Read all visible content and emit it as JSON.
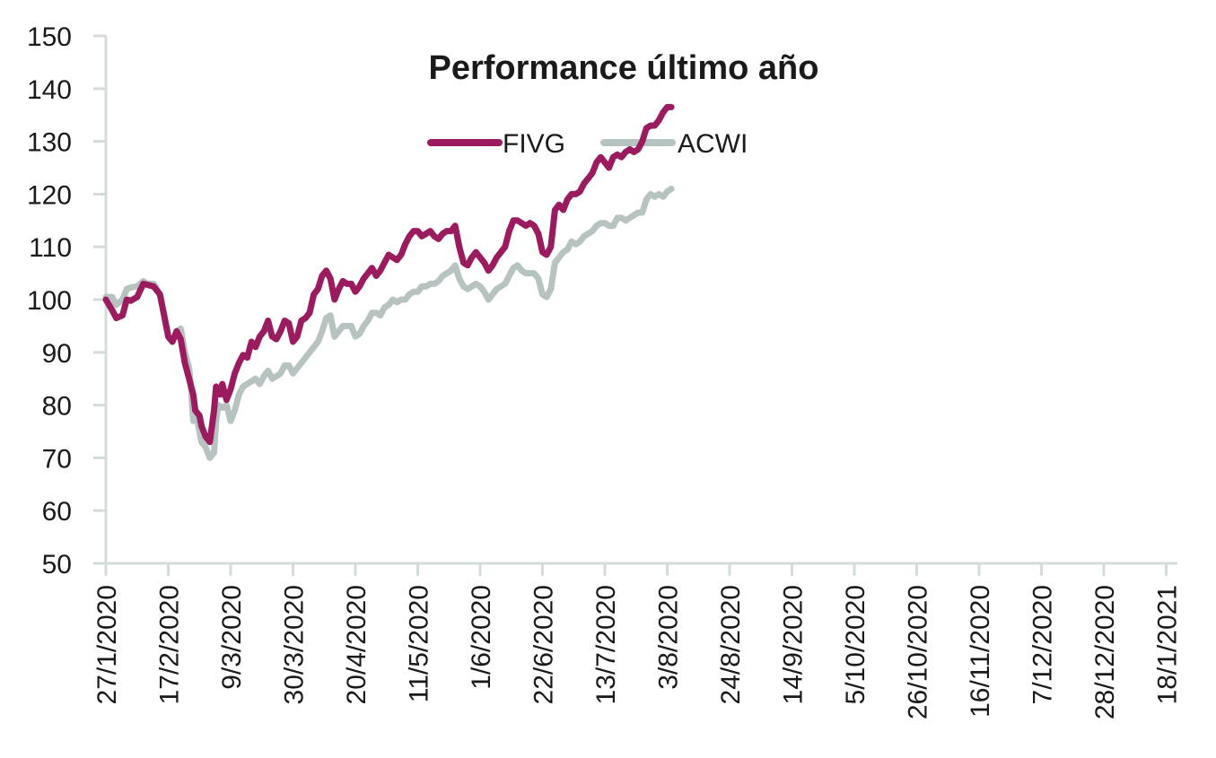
{
  "chart_data": {
    "type": "line",
    "title": "Performance último año",
    "xlabel": "",
    "ylabel": "",
    "ylim": [
      50,
      150
    ],
    "yticks": [
      50,
      60,
      70,
      80,
      90,
      100,
      110,
      120,
      130,
      140,
      150
    ],
    "xtick_labels": [
      "27/1/2020",
      "17/2/2020",
      "9/3/2020",
      "30/3/2020",
      "20/4/2020",
      "11/5/2020",
      "1/6/2020",
      "22/6/2020",
      "13/7/2020",
      "3/8/2020",
      "24/8/2020",
      "14/9/2020",
      "5/10/2020",
      "26/10/2020",
      "16/11/2020",
      "7/12/2020",
      "28/12/2020",
      "18/1/2021"
    ],
    "grid": false,
    "legend_position": "top-center",
    "series": [
      {
        "name": "FIVG",
        "color": "#9b1b5f",
        "points": [
          [
            0,
            100
          ],
          [
            0.3,
            98
          ],
          [
            0.5,
            96.5
          ],
          [
            0.8,
            97
          ],
          [
            1,
            100
          ],
          [
            1.2,
            99.8
          ],
          [
            1.5,
            100.5
          ],
          [
            1.8,
            103
          ],
          [
            2,
            102.8
          ],
          [
            2.3,
            102.5
          ],
          [
            2.6,
            101
          ],
          [
            2.8,
            97
          ],
          [
            3,
            93
          ],
          [
            3.2,
            92
          ],
          [
            3.4,
            94
          ],
          [
            3.6,
            92.5
          ],
          [
            3.8,
            88
          ],
          [
            4,
            85
          ],
          [
            4.2,
            82
          ],
          [
            4.3,
            79
          ],
          [
            4.5,
            78
          ],
          [
            4.6,
            76
          ],
          [
            4.8,
            74
          ],
          [
            5,
            73
          ],
          [
            5.2,
            79
          ],
          [
            5.3,
            83.5
          ],
          [
            5.5,
            82
          ],
          [
            5.6,
            84
          ],
          [
            5.8,
            81
          ],
          [
            6,
            83
          ],
          [
            6.2,
            86
          ],
          [
            6.4,
            88
          ],
          [
            6.6,
            89.5
          ],
          [
            6.8,
            89
          ],
          [
            7,
            92
          ],
          [
            7.2,
            91
          ],
          [
            7.4,
            93
          ],
          [
            7.6,
            94
          ],
          [
            7.8,
            96
          ],
          [
            8,
            93
          ],
          [
            8.2,
            92.5
          ],
          [
            8.4,
            94
          ],
          [
            8.6,
            96
          ],
          [
            8.8,
            95.5
          ],
          [
            9,
            92
          ],
          [
            9.2,
            93
          ],
          [
            9.4,
            96
          ],
          [
            9.6,
            96.5
          ],
          [
            9.8,
            97.5
          ],
          [
            10,
            101
          ],
          [
            10.2,
            102
          ],
          [
            10.4,
            104.5
          ],
          [
            10.6,
            105.5
          ],
          [
            10.8,
            104
          ],
          [
            11,
            100
          ],
          [
            11.2,
            102
          ],
          [
            11.4,
            103.5
          ],
          [
            11.6,
            103
          ],
          [
            11.8,
            103
          ],
          [
            12,
            101.5
          ],
          [
            12.2,
            102.5
          ],
          [
            12.4,
            104
          ],
          [
            12.6,
            105
          ],
          [
            12.8,
            106
          ],
          [
            13,
            104.5
          ],
          [
            13.2,
            105.5
          ],
          [
            13.4,
            107
          ],
          [
            13.6,
            108.5
          ],
          [
            13.8,
            108
          ],
          [
            14,
            107.5
          ],
          [
            14.2,
            108.5
          ],
          [
            14.4,
            110.5
          ],
          [
            14.6,
            112
          ],
          [
            14.8,
            113
          ],
          [
            15,
            113
          ],
          [
            15.2,
            112
          ],
          [
            15.4,
            112.5
          ],
          [
            15.6,
            113
          ],
          [
            15.8,
            112
          ],
          [
            16,
            111.5
          ],
          [
            16.2,
            112.5
          ],
          [
            16.4,
            113
          ],
          [
            16.6,
            113
          ],
          [
            16.8,
            114
          ],
          [
            17,
            110
          ],
          [
            17.2,
            107
          ],
          [
            17.4,
            106.5
          ],
          [
            17.6,
            108
          ],
          [
            17.8,
            109
          ],
          [
            18,
            108
          ],
          [
            18.2,
            107
          ],
          [
            18.4,
            105.5
          ],
          [
            18.6,
            106.5
          ],
          [
            18.8,
            108
          ],
          [
            19,
            109
          ],
          [
            19.2,
            110
          ],
          [
            19.4,
            113
          ],
          [
            19.6,
            115
          ],
          [
            19.8,
            115
          ],
          [
            20,
            114.5
          ],
          [
            20.2,
            114
          ],
          [
            20.4,
            114.5
          ],
          [
            20.6,
            114
          ],
          [
            20.8,
            112.5
          ],
          [
            21,
            109
          ],
          [
            21.2,
            108.5
          ],
          [
            21.4,
            110
          ],
          [
            21.6,
            117
          ],
          [
            21.8,
            118
          ],
          [
            22,
            117
          ],
          [
            22.2,
            119
          ],
          [
            22.4,
            120
          ],
          [
            22.6,
            120
          ],
          [
            22.8,
            120.5
          ],
          [
            23,
            122
          ],
          [
            23.2,
            123
          ],
          [
            23.4,
            124
          ],
          [
            23.6,
            126
          ],
          [
            23.8,
            127
          ],
          [
            24,
            126
          ],
          [
            24.2,
            125
          ],
          [
            24.4,
            127
          ],
          [
            24.6,
            127.5
          ],
          [
            24.8,
            127
          ],
          [
            25,
            128
          ],
          [
            25.2,
            128.5
          ],
          [
            25.4,
            128
          ],
          [
            25.6,
            128.5
          ],
          [
            25.8,
            130
          ],
          [
            26,
            132.5
          ],
          [
            26.2,
            133
          ],
          [
            26.4,
            133
          ],
          [
            26.6,
            134
          ],
          [
            26.8,
            135.5
          ],
          [
            27,
            136.5
          ],
          [
            27.2,
            136.5
          ]
        ]
      },
      {
        "name": "ACWI",
        "color": "#b7c3c1",
        "points": [
          [
            0,
            100.5
          ],
          [
            0.3,
            100.5
          ],
          [
            0.5,
            99
          ],
          [
            0.8,
            100
          ],
          [
            1,
            102
          ],
          [
            1.2,
            102.3
          ],
          [
            1.5,
            102.5
          ],
          [
            1.8,
            103.5
          ],
          [
            2,
            103
          ],
          [
            2.3,
            103
          ],
          [
            2.6,
            101
          ],
          [
            2.8,
            97
          ],
          [
            3,
            93
          ],
          [
            3.2,
            92
          ],
          [
            3.4,
            94
          ],
          [
            3.6,
            94.5
          ],
          [
            3.8,
            90
          ],
          [
            4,
            87
          ],
          [
            4.1,
            83
          ],
          [
            4.2,
            77
          ],
          [
            4.3,
            79
          ],
          [
            4.5,
            75
          ],
          [
            4.6,
            73
          ],
          [
            4.8,
            72
          ],
          [
            5,
            70
          ],
          [
            5.2,
            71
          ],
          [
            5.3,
            77
          ],
          [
            5.4,
            80
          ],
          [
            5.6,
            79.5
          ],
          [
            5.8,
            80
          ],
          [
            6,
            77
          ],
          [
            6.2,
            79
          ],
          [
            6.4,
            82
          ],
          [
            6.6,
            83.5
          ],
          [
            6.8,
            84
          ],
          [
            7,
            84.5
          ],
          [
            7.2,
            85
          ],
          [
            7.4,
            84
          ],
          [
            7.6,
            85.5
          ],
          [
            7.8,
            86.5
          ],
          [
            8,
            85
          ],
          [
            8.2,
            85.5
          ],
          [
            8.4,
            86
          ],
          [
            8.6,
            87.5
          ],
          [
            8.8,
            87.5
          ],
          [
            9,
            86
          ],
          [
            9.2,
            87
          ],
          [
            9.4,
            88
          ],
          [
            9.6,
            89
          ],
          [
            9.8,
            90
          ],
          [
            10,
            91
          ],
          [
            10.2,
            92
          ],
          [
            10.4,
            94
          ],
          [
            10.6,
            96.5
          ],
          [
            10.8,
            97
          ],
          [
            11,
            93
          ],
          [
            11.2,
            94
          ],
          [
            11.4,
            95
          ],
          [
            11.6,
            95
          ],
          [
            11.8,
            95
          ],
          [
            12,
            93
          ],
          [
            12.2,
            93.5
          ],
          [
            12.4,
            95
          ],
          [
            12.6,
            96
          ],
          [
            12.8,
            97.5
          ],
          [
            13,
            97.5
          ],
          [
            13.2,
            97
          ],
          [
            13.4,
            98.5
          ],
          [
            13.6,
            99
          ],
          [
            13.8,
            100
          ],
          [
            14,
            99.5
          ],
          [
            14.2,
            100
          ],
          [
            14.4,
            100
          ],
          [
            14.6,
            101
          ],
          [
            14.8,
            101.5
          ],
          [
            15,
            101.5
          ],
          [
            15.2,
            102.5
          ],
          [
            15.4,
            102.5
          ],
          [
            15.6,
            103
          ],
          [
            15.8,
            103
          ],
          [
            16,
            103.5
          ],
          [
            16.2,
            104.5
          ],
          [
            16.4,
            105
          ],
          [
            16.6,
            105.5
          ],
          [
            16.8,
            106.5
          ],
          [
            17,
            104
          ],
          [
            17.2,
            102.5
          ],
          [
            17.4,
            102
          ],
          [
            17.6,
            102.5
          ],
          [
            17.8,
            103
          ],
          [
            18,
            102.5
          ],
          [
            18.2,
            101.5
          ],
          [
            18.4,
            100
          ],
          [
            18.6,
            101
          ],
          [
            18.8,
            102
          ],
          [
            19,
            102.5
          ],
          [
            19.2,
            103
          ],
          [
            19.4,
            104.5
          ],
          [
            19.6,
            106
          ],
          [
            19.8,
            106.5
          ],
          [
            20,
            105.5
          ],
          [
            20.2,
            105
          ],
          [
            20.4,
            105
          ],
          [
            20.6,
            105
          ],
          [
            20.8,
            104
          ],
          [
            21,
            101
          ],
          [
            21.2,
            100.5
          ],
          [
            21.4,
            102
          ],
          [
            21.6,
            107
          ],
          [
            21.8,
            108
          ],
          [
            22,
            109
          ],
          [
            22.2,
            109.5
          ],
          [
            22.4,
            111
          ],
          [
            22.6,
            110.5
          ],
          [
            22.8,
            111
          ],
          [
            23,
            112
          ],
          [
            23.2,
            112.5
          ],
          [
            23.4,
            113
          ],
          [
            23.6,
            114
          ],
          [
            23.8,
            114.5
          ],
          [
            24,
            114.5
          ],
          [
            24.2,
            114
          ],
          [
            24.4,
            114
          ],
          [
            24.6,
            115.5
          ],
          [
            24.8,
            115.5
          ],
          [
            25,
            115
          ],
          [
            25.2,
            115.5
          ],
          [
            25.4,
            116
          ],
          [
            25.6,
            116.5
          ],
          [
            25.8,
            116.5
          ],
          [
            26,
            119
          ],
          [
            26.2,
            120
          ],
          [
            26.4,
            119.5
          ],
          [
            26.6,
            120
          ],
          [
            26.8,
            119.5
          ],
          [
            27,
            120.5
          ],
          [
            27.2,
            121
          ]
        ]
      }
    ]
  }
}
